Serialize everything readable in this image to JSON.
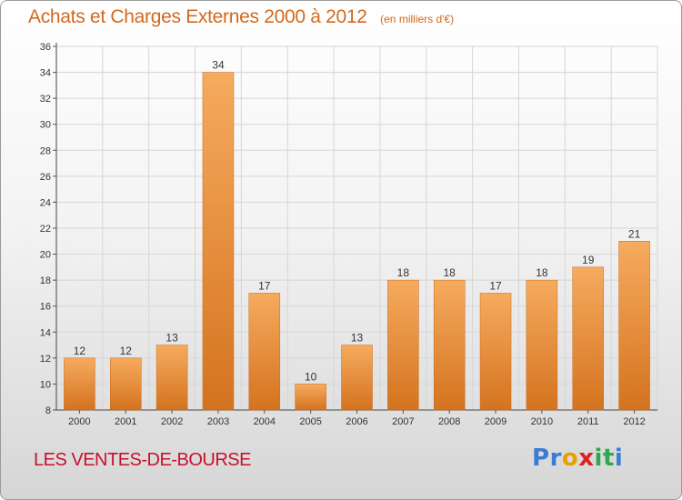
{
  "title": "Achats et Charges Externes 2000 à 2012",
  "subtitle": "(en milliers d'€)",
  "commune": "LES VENTES-DE-BOURSE",
  "logo": "Proxiti",
  "colors": {
    "title": "#d2691e",
    "commune": "#c8102e",
    "bar_light": "#f5a85a",
    "bar_dark": "#d97a24"
  },
  "chart_data": {
    "type": "bar",
    "categories": [
      "2000",
      "2001",
      "2002",
      "2003",
      "2004",
      "2005",
      "2006",
      "2007",
      "2008",
      "2009",
      "2010",
      "2011",
      "2012"
    ],
    "values": [
      12,
      12,
      13,
      34,
      17,
      10,
      13,
      18,
      18,
      17,
      18,
      19,
      21
    ],
    "title": "Achats et Charges Externes 2000 à 2012",
    "subtitle": "(en milliers d'€)",
    "ylim": [
      8,
      36
    ],
    "yticks": [
      8,
      10,
      12,
      14,
      16,
      18,
      20,
      22,
      24,
      26,
      28,
      30,
      32,
      34,
      36
    ],
    "grid": true,
    "data_labels": true
  }
}
